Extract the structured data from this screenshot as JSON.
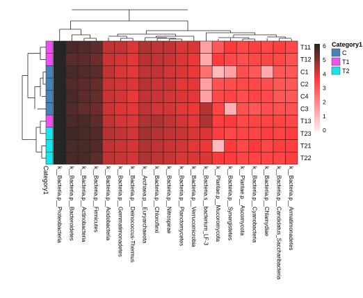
{
  "chart_data": {
    "type": "heatmap",
    "rows": [
      "T11",
      "T12",
      "C1",
      "C2",
      "C4",
      "C3",
      "T13",
      "T23",
      "T21",
      "T22"
    ],
    "columns": [
      "k__Bacteria.p__Proteobacteria",
      "k__Bacteria.p__Bacteroidetes",
      "k__Bacteria.p__Actinobacteria",
      "k__Bacteria.p__Firmicutes",
      "k__Bacteria.p__Acidobacteria",
      "k__Bacteria.p__Gemmatimonadetes",
      "k__Bacteria.p__Deinococcus-Thermus",
      "k__Archaea.p__Euryarchaeota",
      "k__Bacteria.p__Chloroflexi",
      "k__Bacteria.p__Nitrospirae",
      "k__Bacteria.p__Planctomycetes",
      "k__Bacteria.p__Verrucomicrobia",
      "k__Bacteria.s__bacterium_LF-3",
      "k__Plantae.p__Mucoromycota",
      "k__Bacteria.p__Synergistetes",
      "k__Plantae.p__Ascomycota",
      "k__Bacteria.p__Cyanobacteria",
      "k__Bacteria.p__Chlamydiae",
      "k__Bacteria.p__Candidatus_Saccharibacteria",
      "k__Bacteria.p__Armatimonadetes"
    ],
    "row_category": [
      "T1",
      "T1",
      "C",
      "C",
      "C",
      "C",
      "T1",
      "T2",
      "T2",
      "T2"
    ],
    "values": [
      [
        6.3,
        5.6,
        5.5,
        5.4,
        4.3,
        4.3,
        4.0,
        4.5,
        4.3,
        4.3,
        4.0,
        4.0,
        1.5,
        3.0,
        3.6,
        3.3,
        3.5,
        3.3,
        3.5,
        3.3
      ],
      [
        6.1,
        5.4,
        5.4,
        5.2,
        4.2,
        4.1,
        3.9,
        4.4,
        4.3,
        4.2,
        4.0,
        3.8,
        1.3,
        3.6,
        3.3,
        3.2,
        3.3,
        3.4,
        3.3,
        3.1
      ],
      [
        6.3,
        5.6,
        5.5,
        5.4,
        4.3,
        4.0,
        3.9,
        4.3,
        4.3,
        4.1,
        4.0,
        3.8,
        2.5,
        1.0,
        1.5,
        3.2,
        3.0,
        1.3,
        3.0,
        3.0
      ],
      [
        6.2,
        5.5,
        5.4,
        5.3,
        4.2,
        4.1,
        4.0,
        4.4,
        4.2,
        4.2,
        3.9,
        3.9,
        1.5,
        3.1,
        3.2,
        3.3,
        3.3,
        3.2,
        3.0,
        3.0
      ],
      [
        6.2,
        5.6,
        5.4,
        5.3,
        4.2,
        4.1,
        3.8,
        4.3,
        4.2,
        4.1,
        4.0,
        3.9,
        1.5,
        3.3,
        3.4,
        3.2,
        3.4,
        3.3,
        3.0,
        3.0
      ],
      [
        6.1,
        5.5,
        5.3,
        5.2,
        4.2,
        4.0,
        3.9,
        4.3,
        4.1,
        4.1,
        3.9,
        3.8,
        4.4,
        3.4,
        1.2,
        3.1,
        3.0,
        3.2,
        3.1,
        3.1
      ],
      [
        6.2,
        5.6,
        5.6,
        5.4,
        4.3,
        4.1,
        4.0,
        4.5,
        4.5,
        4.3,
        4.1,
        3.9,
        4.5,
        3.5,
        3.6,
        3.3,
        3.4,
        3.4,
        3.4,
        3.3
      ],
      [
        6.4,
        5.7,
        5.6,
        5.5,
        4.4,
        4.3,
        4.1,
        4.6,
        4.4,
        4.3,
        4.2,
        4.0,
        4.0,
        3.5,
        3.3,
        3.4,
        3.4,
        3.5,
        3.4,
        3.5
      ],
      [
        6.3,
        5.6,
        5.6,
        5.5,
        4.3,
        4.2,
        4.1,
        4.5,
        4.3,
        4.2,
        4.1,
        3.9,
        3.8,
        1.0,
        3.6,
        3.3,
        3.6,
        3.3,
        3.5,
        3.5
      ],
      [
        6.4,
        5.6,
        5.6,
        5.4,
        4.3,
        4.2,
        4.1,
        4.5,
        4.3,
        4.2,
        4.0,
        4.0,
        4.0,
        3.6,
        3.6,
        3.4,
        3.4,
        3.4,
        3.4,
        3.5
      ]
    ],
    "scale": {
      "min": 0,
      "max": 6,
      "ticks": [
        "6",
        "5",
        "4",
        "3",
        "2",
        "1",
        "0"
      ],
      "colors": [
        "#ffebee",
        "#ff3a3a",
        "#262626"
      ]
    },
    "category_label": "Category1",
    "legend": {
      "title": "Category1",
      "items": [
        {
          "label": "C",
          "color": "#4682b4"
        },
        {
          "label": "T1",
          "color": "#ee52ee"
        },
        {
          "label": "T2",
          "color": "#18e4ee"
        }
      ]
    },
    "row_dendrogram_order_note": "",
    "column_dendrogram_present": true,
    "row_dendrogram_present": true
  }
}
